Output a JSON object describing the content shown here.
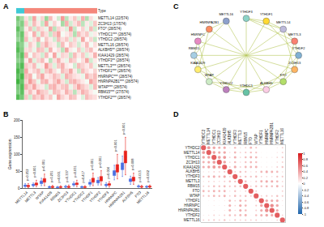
{
  "chart_data": [
    {
      "type": "heatmap",
      "panel": "A",
      "rows": [
        "METTL14 (22/574)",
        "ZC3H13 (17/574)",
        "FTO* (28/574)",
        "YTHDC1*** (28/574)",
        "YTHDC2 (28/574)",
        "METTL16 (28/574)",
        "ALKBH5** (28/574)",
        "KIAA1429 (28/574)",
        "YTHDF3** (28/574)",
        "METTL3*** (28/574)",
        "YTHDF1*** (28/574)",
        "HNRNPC*** (28/574)",
        "HNRNPA2B1*** (28/574)",
        "WTAP*** (28/574)",
        "RBM15*** (27/574)",
        "YTHDF2*** (28/574)"
      ],
      "z": [
        [
          -1.2,
          -0.8,
          0.3,
          -0.5,
          0.8,
          -0.2,
          0.4,
          -0.9,
          0.6,
          0.1,
          -0.4,
          0.9,
          -0.6,
          0.2,
          0.5,
          -0.3,
          0.7,
          -0.7,
          0.3,
          -0.1
        ],
        [
          -1.0,
          -1.1,
          0.5,
          -0.3,
          0.6,
          0.2,
          -0.5,
          0.8,
          -0.2,
          0.4,
          0.1,
          -0.8,
          0.7,
          -0.4,
          0.3,
          0.6,
          -0.6,
          0.2,
          -0.3,
          0.5
        ],
        [
          -1.4,
          -0.9,
          0.2,
          0.6,
          -0.4,
          0.5,
          0.3,
          -0.2,
          0.8,
          -0.6,
          0.4,
          0.2,
          -0.3,
          0.9,
          -0.5,
          0.1,
          0.4,
          -0.2,
          0.6,
          -0.4
        ],
        [
          -1.1,
          -1.3,
          0.4,
          0.1,
          0.7,
          -0.3,
          0.6,
          0.3,
          -0.5,
          0.5,
          0.8,
          -0.1,
          0.2,
          0.4,
          -0.7,
          0.6,
          0.3,
          0.5,
          -0.2,
          0.2
        ],
        [
          -0.9,
          -1.2,
          0.6,
          -0.2,
          0.3,
          0.7,
          -0.1,
          0.5,
          0.2,
          -0.4,
          0.6,
          0.3,
          0.5,
          -0.3,
          0.4,
          -0.2,
          0.8,
          0.1,
          0.4,
          -0.5
        ],
        [
          -1.3,
          -1.0,
          -0.3,
          0.5,
          0.2,
          -0.6,
          0.4,
          0.7,
          0.3,
          0.2,
          -0.5,
          0.6,
          0.1,
          0.5,
          0.3,
          -0.4,
          0.2,
          0.6,
          -0.1,
          0.3
        ],
        [
          -1.5,
          -1.1,
          0.3,
          0.4,
          -0.2,
          0.6,
          0.5,
          -0.3,
          0.7,
          0.1,
          0.3,
          -0.6,
          0.8,
          0.2,
          -0.1,
          0.5,
          -0.3,
          0.4,
          0.6,
          0.1
        ],
        [
          -1.2,
          -1.4,
          0.7,
          -0.1,
          0.5,
          0.3,
          -0.4,
          0.6,
          0.1,
          0.8,
          -0.2,
          0.4,
          0.3,
          -0.5,
          0.6,
          0.2,
          0.5,
          -0.3,
          0.2,
          0.7
        ],
        [
          -1.0,
          -1.2,
          0.2,
          0.8,
          -0.3,
          0.4,
          0.6,
          0.1,
          -0.6,
          0.3,
          0.7,
          0.2,
          -0.2,
          0.6,
          0.4,
          -0.1,
          0.3,
          0.8,
          -0.4,
          0.2
        ],
        [
          -1.3,
          -1.5,
          0.5,
          0.3,
          0.6,
          -0.2,
          0.2,
          0.9,
          0.4,
          -0.3,
          0.5,
          0.7,
          0.2,
          0.1,
          -0.4,
          0.6,
          0.4,
          0.2,
          0.5,
          -0.2
        ],
        [
          -1.6,
          -1.2,
          0.8,
          0.2,
          0.4,
          0.6,
          -0.3,
          0.5,
          0.7,
          0.3,
          -0.1,
          0.6,
          0.4,
          0.8,
          0.2,
          -0.5,
          0.6,
          0.3,
          0.1,
          0.4
        ],
        [
          -1.4,
          -1.6,
          0.6,
          0.7,
          -0.1,
          0.5,
          0.8,
          0.2,
          0.3,
          0.6,
          0.4,
          -0.3,
          0.7,
          0.5,
          0.3,
          0.2,
          -0.2,
          0.7,
          0.4,
          0.6
        ],
        [
          -1.7,
          -1.3,
          0.4,
          0.9,
          0.5,
          -0.2,
          0.6,
          0.7,
          0.2,
          0.5,
          0.8,
          0.3,
          -0.4,
          0.6,
          0.7,
          0.4,
          0.2,
          -0.1,
          0.8,
          0.5
        ],
        [
          -1.2,
          -1.5,
          0.7,
          0.4,
          0.8,
          0.3,
          0.2,
          -0.4,
          0.6,
          0.7,
          0.3,
          0.5,
          0.6,
          -0.2,
          0.4,
          0.8,
          0.5,
          0.3,
          -0.3,
          0.6
        ],
        [
          -1.1,
          -1.4,
          0.3,
          0.6,
          0.2,
          0.8,
          0.5,
          0.4,
          -0.2,
          0.6,
          0.5,
          0.2,
          0.7,
          0.4,
          -0.6,
          0.3,
          0.7,
          0.5,
          0.2,
          -0.1
        ],
        [
          -1.5,
          -1.2,
          0.5,
          -0.4,
          0.6,
          0.4,
          0.7,
          0.3,
          0.5,
          -0.1,
          0.8,
          0.4,
          0.2,
          0.6,
          0.5,
          0.1,
          -0.3,
          0.6,
          0.4,
          0.3
        ]
      ],
      "zlim": [
        -2,
        2
      ],
      "colors": [
        "#1fa51f",
        "#ffffff",
        "#e8211c"
      ],
      "group_row_label": "Type",
      "sample_groups": [
        0,
        0,
        1,
        1,
        1,
        1,
        1,
        1,
        1,
        1,
        1,
        1,
        1,
        1,
        1,
        1,
        1,
        1,
        1,
        1
      ],
      "group_colors": [
        "#3ec9d6",
        "#f4877b"
      ]
    },
    {
      "type": "box",
      "panel": "B",
      "categories": [
        "METTL14",
        "METTL3",
        "WTAP",
        "KIAA1429",
        "RBM15",
        "ZC3H13",
        "YTHDC1",
        "YTHDC2",
        "YTHDF1",
        "YTHDF2",
        "YTHDF3",
        "HNRNPC",
        "HNRNPA2B1",
        "ALKBH5",
        "FTO",
        "METTL16"
      ],
      "series": [
        {
          "color": "#4a6fe3",
          "q1": [
            6,
            8,
            14,
            3,
            2,
            4,
            10,
            3,
            12,
            16,
            8,
            38,
            55,
            20,
            5,
            4
          ],
          "median": [
            8,
            10,
            18,
            4,
            3,
            5,
            12,
            4,
            15,
            20,
            10,
            45,
            65,
            24,
            6,
            5
          ],
          "q3": [
            10,
            12,
            22,
            5,
            4,
            6,
            14,
            5,
            18,
            24,
            12,
            52,
            75,
            28,
            7,
            6
          ],
          "lower": [
            3,
            5,
            8,
            2,
            1,
            2,
            6,
            2,
            7,
            10,
            4,
            25,
            35,
            12,
            3,
            2
          ],
          "upper": [
            14,
            16,
            30,
            7,
            6,
            9,
            19,
            7,
            25,
            32,
            17,
            68,
            95,
            36,
            10,
            8
          ]
        },
        {
          "color": "#e8211c",
          "q1": [
            5,
            10,
            18,
            3,
            3,
            3,
            11,
            3,
            18,
            22,
            9,
            48,
            75,
            22,
            4,
            4
          ],
          "median": [
            7,
            13,
            23,
            4,
            4,
            5,
            13,
            4,
            24,
            28,
            11,
            58,
            92,
            27,
            5,
            5
          ],
          "q3": [
            9,
            16,
            29,
            6,
            5,
            6,
            16,
            5,
            30,
            35,
            14,
            70,
            110,
            33,
            6,
            7
          ],
          "lower": [
            2,
            5,
            8,
            1,
            1,
            1,
            5,
            1,
            8,
            10,
            4,
            28,
            40,
            12,
            2,
            2
          ],
          "upper": [
            14,
            24,
            42,
            9,
            8,
            10,
            24,
            8,
            45,
            52,
            20,
            100,
            150,
            45,
            9,
            10
          ]
        }
      ],
      "p_labels": [
        "p=0.052",
        "p<0.001",
        "p=0.001",
        "p=0.231",
        "p<0.001",
        "p=0.337",
        "p=0.031",
        "p=0.417",
        "p<0.001",
        "p<0.001",
        "p=0.004",
        "p<0.001",
        "p<0.001",
        "p=0.008",
        "p=0.015",
        "p=0.062"
      ],
      "y_label": "Gene expression",
      "ylim": [
        0,
        200
      ],
      "yticks": [
        0,
        50,
        100,
        150,
        200
      ]
    },
    {
      "type": "network",
      "panel": "C",
      "nodes": [
        {
          "label": "YTHDF3",
          "color": "#8dd3c7"
        },
        {
          "label": "YTHDF1",
          "color": "#ffd92f"
        },
        {
          "label": "METTL14",
          "color": "#bebada"
        },
        {
          "label": "METTL3",
          "color": "#fb8072"
        },
        {
          "label": "YTHDF2",
          "color": "#80b1d3"
        },
        {
          "label": "ZC3H13",
          "color": "#fdb462"
        },
        {
          "label": "FTO",
          "color": "#b3de69"
        },
        {
          "label": "ALKBH5",
          "color": "#fccde5"
        },
        {
          "label": "YTHDC1",
          "color": "#66c2a5"
        },
        {
          "label": "YTHDC2",
          "color": "#bc80bd"
        },
        {
          "label": "WTAP",
          "color": "#ccebc5"
        },
        {
          "label": "KIAA1429",
          "color": "#ffed6f"
        },
        {
          "label": "RBM15",
          "color": "#a6cee3"
        },
        {
          "label": "HNRNPC",
          "color": "#e78ac3"
        },
        {
          "label": "HNRNPA2B1",
          "color": "#fc8d62"
        },
        {
          "label": "METTL16",
          "color": "#8da0cb"
        }
      ],
      "edges": [
        [
          0,
          1
        ],
        [
          0,
          2
        ],
        [
          0,
          3
        ],
        [
          1,
          2
        ],
        [
          1,
          4
        ],
        [
          2,
          3
        ],
        [
          2,
          5
        ],
        [
          3,
          4
        ],
        [
          3,
          6
        ],
        [
          4,
          5
        ],
        [
          4,
          7
        ],
        [
          5,
          6
        ],
        [
          5,
          8
        ],
        [
          6,
          7
        ],
        [
          6,
          9
        ],
        [
          7,
          8
        ],
        [
          7,
          10
        ],
        [
          8,
          9
        ],
        [
          8,
          11
        ],
        [
          9,
          10
        ],
        [
          9,
          12
        ],
        [
          10,
          11
        ],
        [
          10,
          13
        ],
        [
          11,
          12
        ],
        [
          11,
          14
        ],
        [
          12,
          13
        ],
        [
          12,
          15
        ],
        [
          13,
          14
        ],
        [
          14,
          15
        ],
        [
          0,
          8
        ],
        [
          1,
          9
        ],
        [
          2,
          10
        ],
        [
          3,
          11
        ],
        [
          4,
          12
        ],
        [
          5,
          13
        ],
        [
          6,
          14
        ],
        [
          7,
          15
        ]
      ],
      "edge_color": "#b7c75a"
    },
    {
      "type": "correlation",
      "panel": "D",
      "marker": "circle",
      "categories": [
        "YTHDC2",
        "METTL14",
        "YTHDC1",
        "ZC3H13",
        "KIAA1429",
        "ALKBH5",
        "YTHDF3",
        "METTL3",
        "RBM15",
        "FTO",
        "WTAP",
        "YTHDF1",
        "HNRNPC",
        "HNRNPA2B1",
        "YTHDF2",
        "METTL16"
      ],
      "r": [
        [
          1
        ],
        [
          0.62,
          1
        ],
        [
          0.55,
          0.58,
          1
        ],
        [
          0.48,
          0.52,
          0.6,
          1
        ],
        [
          0.5,
          0.55,
          0.62,
          0.58,
          1
        ],
        [
          0.2,
          0.25,
          0.3,
          0.28,
          0.35,
          1
        ],
        [
          0.4,
          0.45,
          0.5,
          0.42,
          0.52,
          0.3,
          1
        ],
        [
          0.22,
          0.3,
          0.28,
          0.25,
          0.32,
          0.4,
          0.38,
          1
        ],
        [
          0.3,
          0.35,
          0.42,
          0.38,
          0.45,
          0.36,
          0.4,
          0.42,
          1
        ],
        [
          0.45,
          0.4,
          0.48,
          0.44,
          0.46,
          0.22,
          0.38,
          0.2,
          0.3,
          1
        ],
        [
          0.35,
          0.38,
          0.45,
          0.4,
          0.48,
          0.3,
          0.42,
          0.35,
          0.4,
          0.32,
          1
        ],
        [
          0.1,
          0.15,
          0.18,
          0.12,
          0.2,
          0.45,
          0.3,
          0.48,
          0.4,
          0.05,
          0.28,
          1
        ],
        [
          0.08,
          0.12,
          0.2,
          0.15,
          0.22,
          0.5,
          0.28,
          0.52,
          0.45,
          -0.02,
          0.35,
          0.55,
          1
        ],
        [
          0.05,
          0.1,
          0.18,
          0.12,
          0.2,
          0.48,
          0.25,
          0.5,
          0.42,
          -0.05,
          0.32,
          0.52,
          0.7,
          1
        ],
        [
          0.18,
          0.22,
          0.3,
          0.25,
          0.32,
          0.42,
          0.38,
          0.45,
          0.48,
          0.12,
          0.4,
          0.5,
          0.55,
          0.52,
          1
        ],
        [
          0.3,
          0.32,
          0.35,
          0.3,
          0.38,
          0.25,
          0.35,
          0.28,
          0.32,
          0.3,
          0.33,
          0.2,
          0.18,
          0.15,
          0.28,
          1
        ]
      ],
      "zlim": [
        -1,
        1
      ],
      "zticks": [
        1,
        0.8,
        0.6,
        0.4,
        0.2,
        0,
        -0.2,
        -0.4,
        -0.6,
        -0.8,
        -1
      ],
      "colors": [
        "#2166ac",
        "#ffffff",
        "#d7191c"
      ]
    }
  ]
}
